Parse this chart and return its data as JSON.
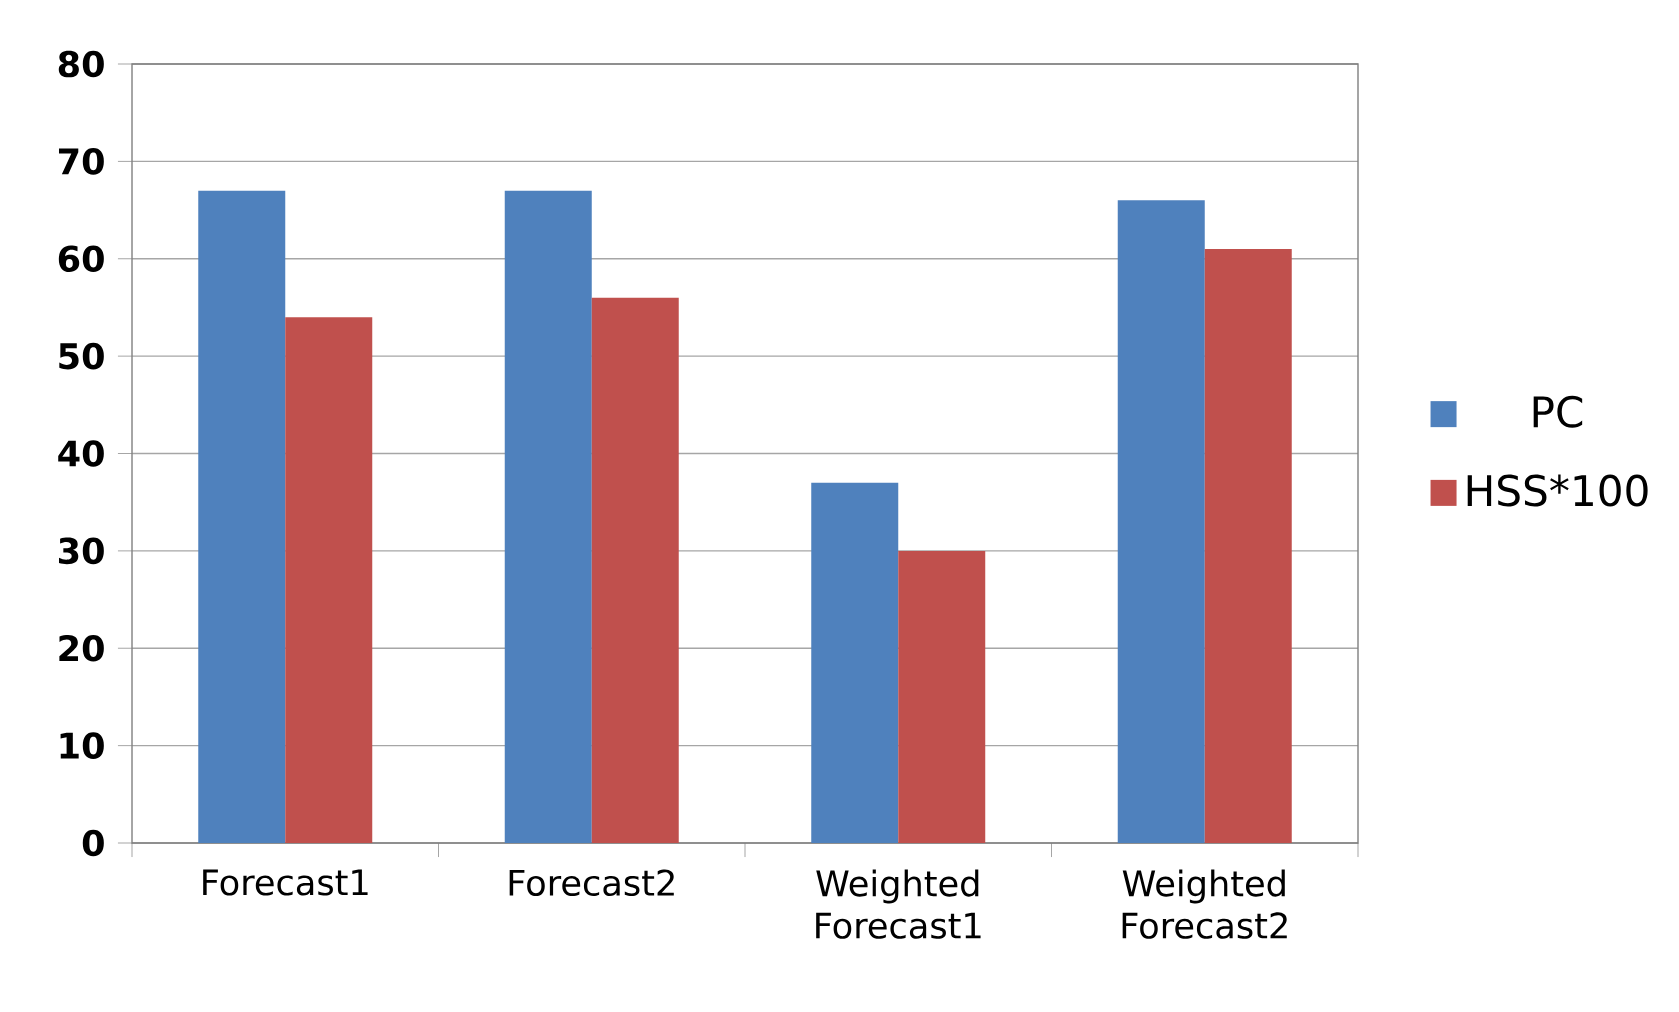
{
  "chart_data": {
    "type": "bar",
    "categories": [
      "Forecast1",
      "Forecast2",
      "Weighted Forecast1",
      "Weighted Forecast2"
    ],
    "series": [
      {
        "name": "PC",
        "color": "#4f81bd",
        "values": [
          67,
          67,
          37,
          66
        ]
      },
      {
        "name": "HSS*100",
        "color": "#c0504d",
        "values": [
          54,
          56,
          30,
          61
        ]
      }
    ],
    "ylim": [
      0,
      80
    ],
    "yticks": [
      0,
      10,
      20,
      30,
      40,
      50,
      60,
      70,
      80
    ],
    "grid": "y",
    "legend": "right"
  }
}
